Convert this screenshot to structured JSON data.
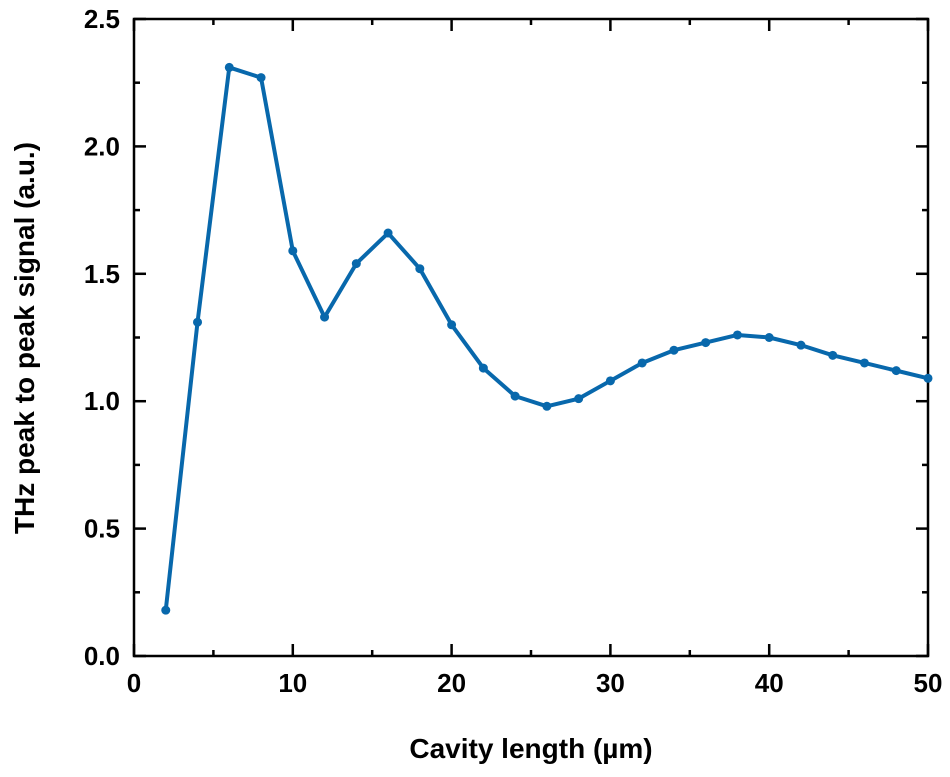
{
  "chart_data": {
    "type": "line",
    "title": "",
    "xlabel": "Cavity length (µm)",
    "ylabel": "THz peak to peak signal (a.u.)",
    "xlim": [
      0,
      50
    ],
    "ylim": [
      0,
      2.5
    ],
    "xticks": [
      0,
      10,
      20,
      30,
      40,
      50
    ],
    "xtick_labels": [
      "0",
      "10",
      "20",
      "30",
      "40",
      "50"
    ],
    "yticks": [
      0.0,
      0.5,
      1.0,
      1.5,
      2.0,
      2.5
    ],
    "ytick_labels": [
      "0.0",
      "0.5",
      "1.0",
      "1.5",
      "2.0",
      "2.5"
    ],
    "grid": false,
    "legend": null,
    "series": [
      {
        "name": "THz peak to peak signal",
        "color": "#0868AC",
        "marker": "circle",
        "x": [
          2,
          4,
          6,
          8,
          10,
          12,
          14,
          16,
          18,
          20,
          22,
          24,
          26,
          28,
          30,
          32,
          34,
          36,
          38,
          40,
          42,
          44,
          46,
          48,
          50
        ],
        "values": [
          0.18,
          1.31,
          2.31,
          2.27,
          1.59,
          1.33,
          1.54,
          1.66,
          1.52,
          1.3,
          1.13,
          1.02,
          0.98,
          1.01,
          1.08,
          1.15,
          1.2,
          1.23,
          1.26,
          1.25,
          1.22,
          1.18,
          1.15,
          1.12,
          1.09
        ]
      }
    ]
  }
}
